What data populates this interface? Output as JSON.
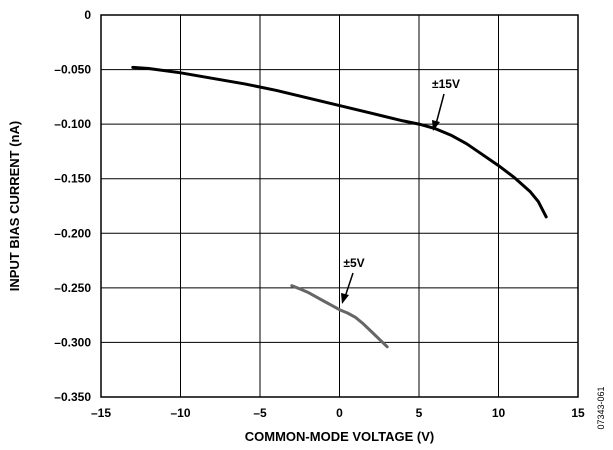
{
  "chart_data": {
    "type": "line",
    "xlabel": "COMMON-MODE VOLTAGE (V)",
    "ylabel": "INPUT BIAS CURRENT (nA)",
    "xlim": [
      -15,
      15
    ],
    "ylim": [
      -0.35,
      0
    ],
    "x_ticks": [
      "–15",
      "–10",
      "–5",
      "0",
      "5",
      "10",
      "15"
    ],
    "y_ticks": [
      "0",
      "–0.050",
      "–0.100",
      "–0.150",
      "–0.200",
      "–0.250",
      "–0.300",
      "–0.350"
    ],
    "grid": true,
    "series": [
      {
        "name": "±15V",
        "color": "#000000",
        "x": [
          -13,
          -12,
          -10,
          -8,
          -6,
          -4,
          -2,
          0,
          2,
          4,
          5,
          6,
          7,
          8,
          9,
          10,
          11,
          12,
          12.5,
          13
        ],
        "y": [
          -0.048,
          -0.049,
          -0.053,
          -0.058,
          -0.063,
          -0.069,
          -0.076,
          -0.083,
          -0.09,
          -0.097,
          -0.1,
          -0.104,
          -0.11,
          -0.118,
          -0.128,
          -0.138,
          -0.149,
          -0.162,
          -0.171,
          -0.185
        ]
      },
      {
        "name": "±5V",
        "color": "#666666",
        "x": [
          -3,
          -2.5,
          -2,
          -1.5,
          -1,
          -0.5,
          0,
          0.5,
          1,
          1.5,
          2,
          2.5,
          3
        ],
        "y": [
          -0.248,
          -0.251,
          -0.254,
          -0.258,
          -0.262,
          -0.266,
          -0.27,
          -0.273,
          -0.277,
          -0.283,
          -0.29,
          -0.297,
          -0.304
        ]
      }
    ]
  },
  "figure_code": "07343-061"
}
